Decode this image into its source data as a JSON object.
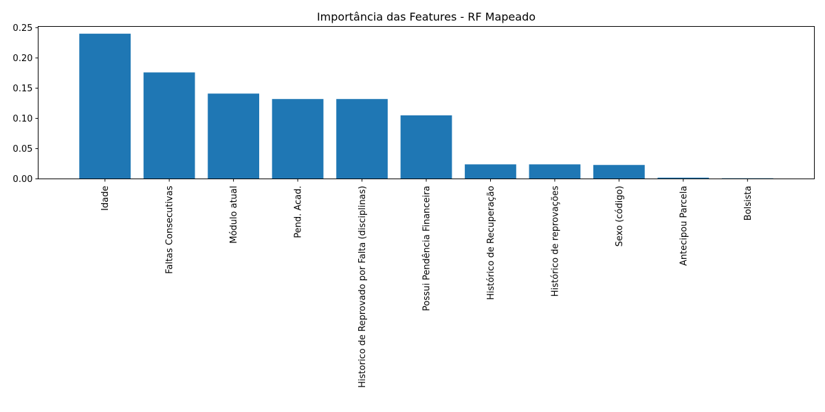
{
  "chart_data": {
    "type": "bar",
    "title": "Importância das Features - RF Mapeado",
    "xlabel": "",
    "ylabel": "",
    "categories": [
      "Idade",
      "Faltas Consecutivas",
      "Módulo atual",
      "Pend. Acad.",
      "Historico de Reprovado por Falta (disciplinas)",
      "Possui Pendência Financeira",
      "Histórico de Recuperação",
      "Histórico de reprovações",
      "Sexo (código)",
      "Antecipou Parcela",
      "Bolsista"
    ],
    "values": [
      0.24,
      0.176,
      0.141,
      0.132,
      0.132,
      0.105,
      0.024,
      0.024,
      0.023,
      0.002,
      0.001
    ],
    "ylim": [
      0,
      0.252
    ],
    "yticks": [
      0.0,
      0.05,
      0.1,
      0.15,
      0.2,
      0.25
    ],
    "ytick_labels": [
      "0.00",
      "0.05",
      "0.10",
      "0.15",
      "0.20",
      "0.25"
    ],
    "bar_color": "#1f77b4",
    "x_tick_rotation": "vertical",
    "grid": false,
    "legend": "none"
  }
}
